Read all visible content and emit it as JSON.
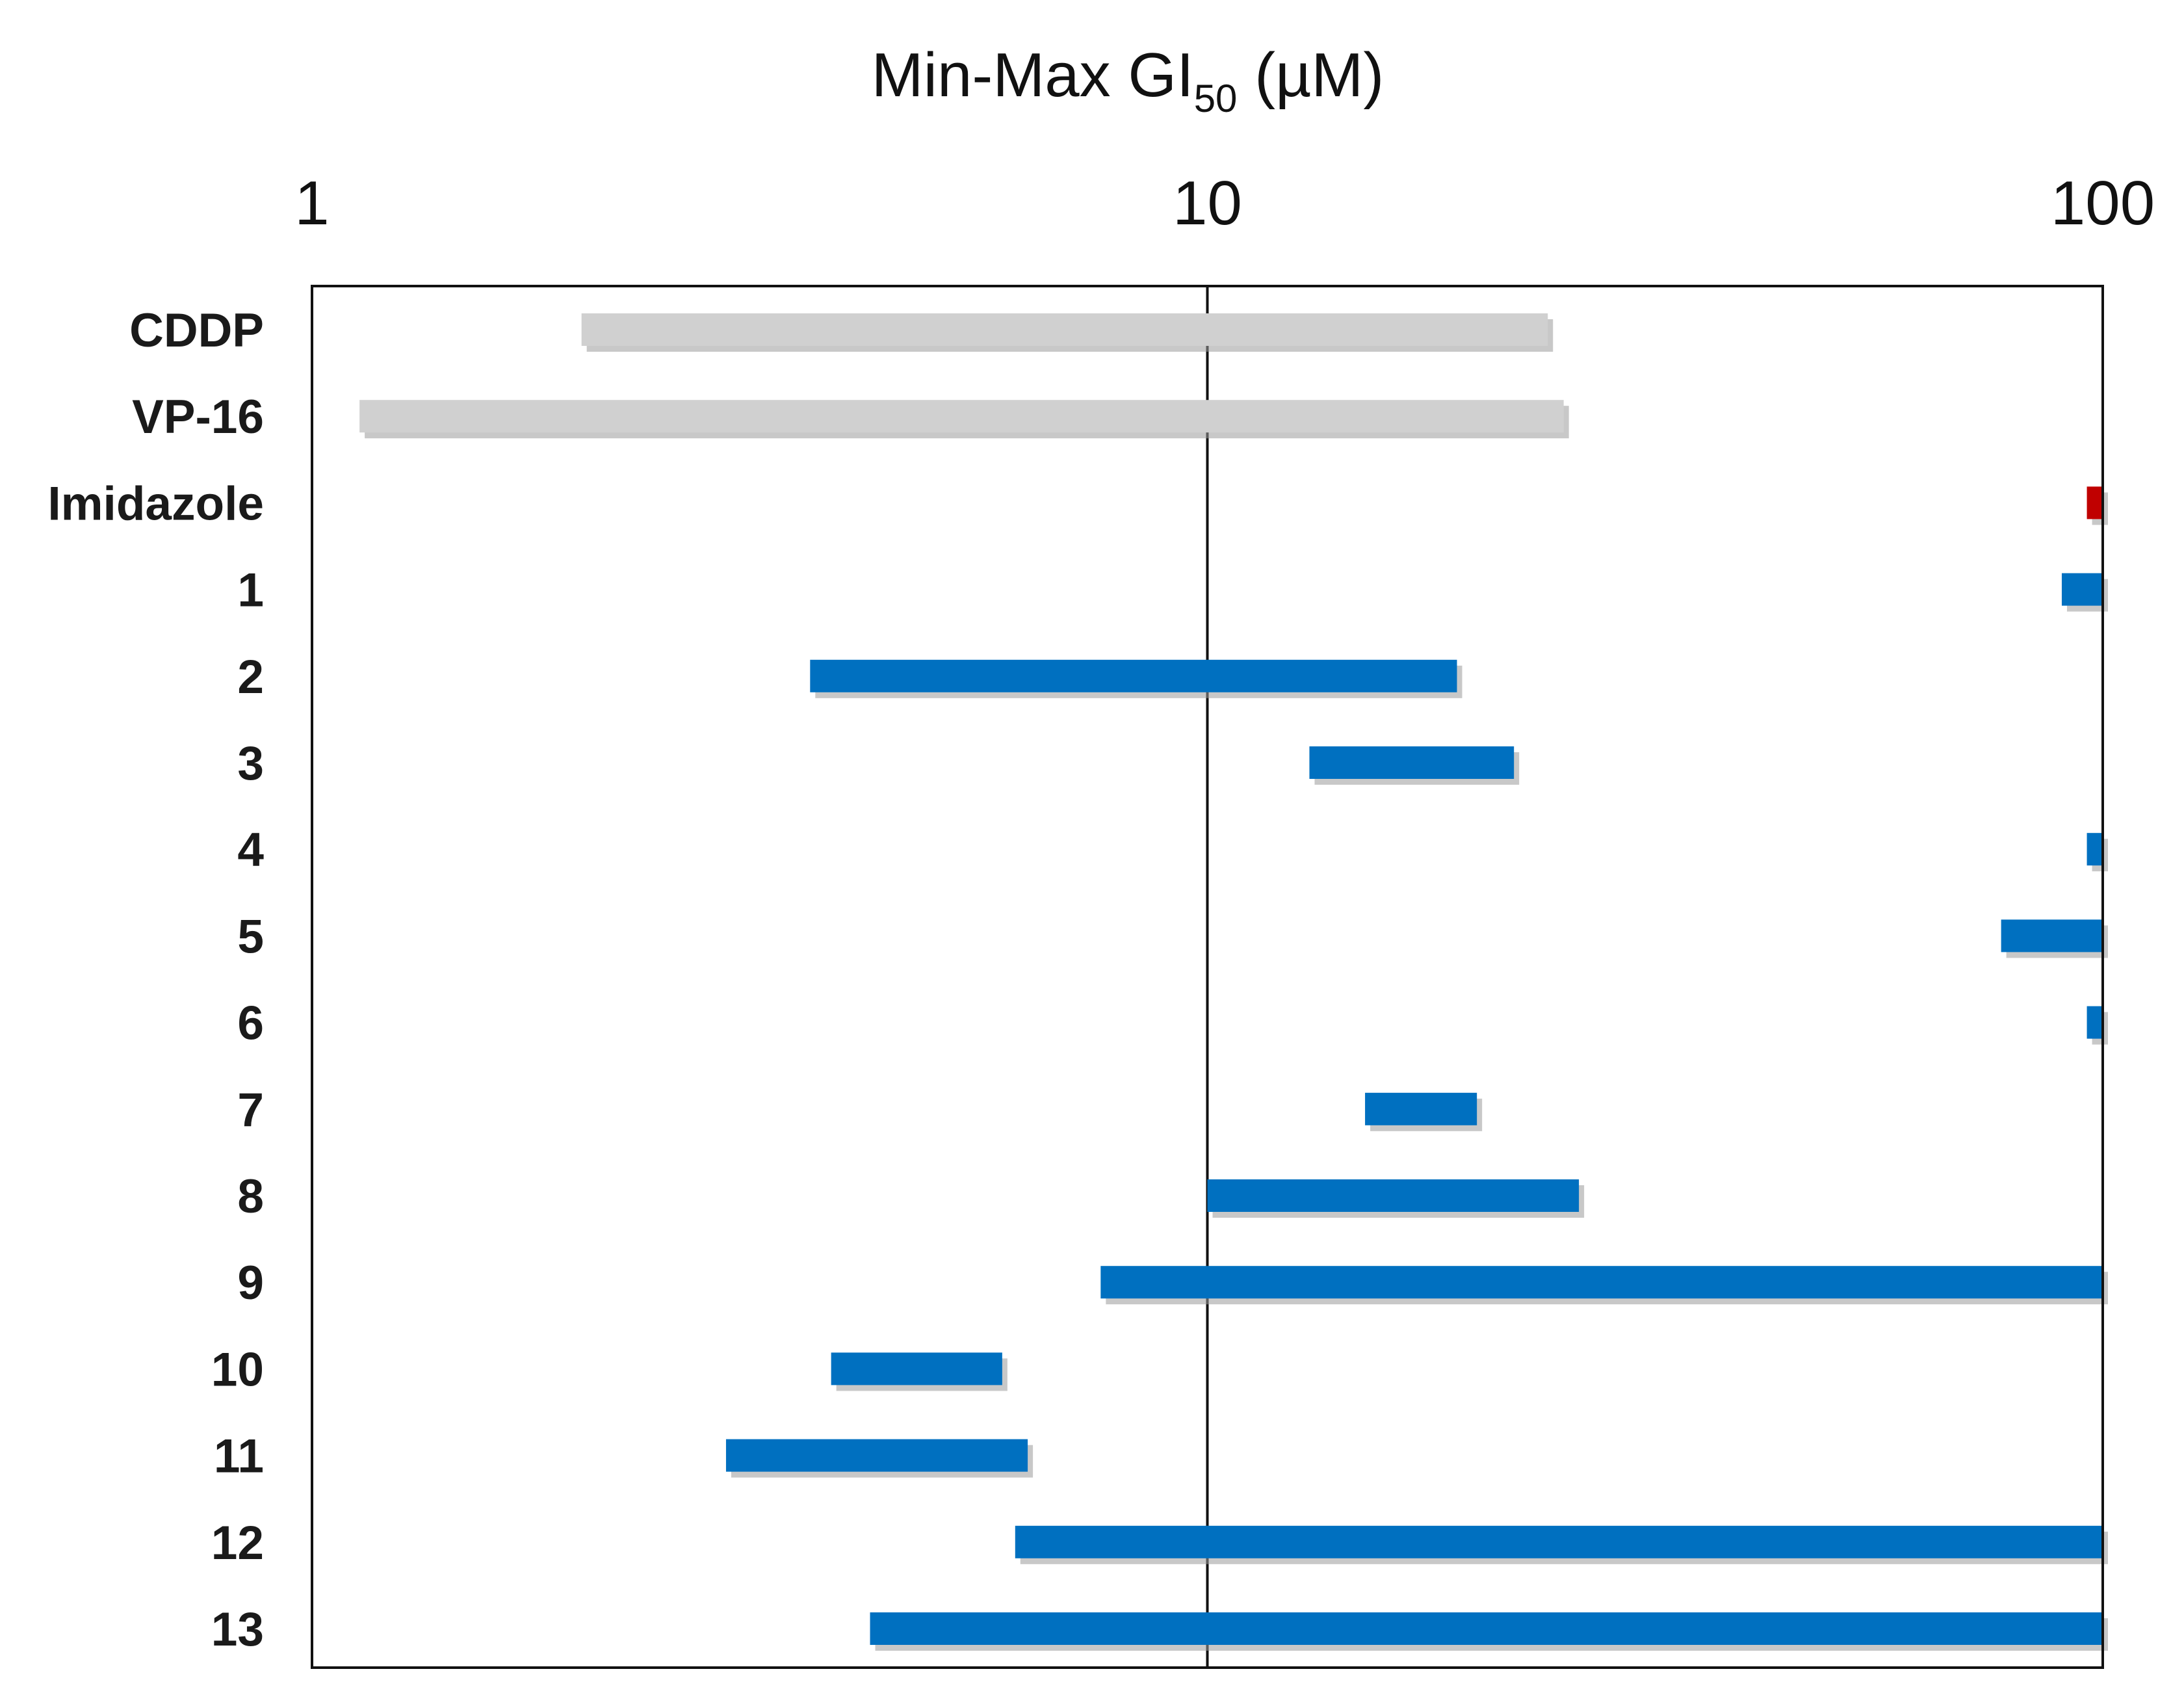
{
  "chart_data": {
    "type": "bar",
    "orientation": "horizontal",
    "bar_style": "floating-range",
    "title": {
      "main": "Min-Max GI",
      "subscript": "50",
      "unit": " (µM)"
    },
    "x_axis": {
      "scale": "log",
      "range": [
        1,
        100
      ],
      "position": "top",
      "ticks": [
        {
          "value": 1,
          "label": "1"
        },
        {
          "value": 10,
          "label": "10"
        },
        {
          "value": 100,
          "label": "100"
        }
      ],
      "gridlines": [
        10
      ]
    },
    "legend": "none",
    "colors": {
      "reference": "#d0d0d0",
      "imidazole": "#c00000",
      "compound": "#0070c0",
      "shadow": "#9a9a9a",
      "frame": "#111111"
    },
    "categories": [
      "CDDP",
      "VP-16",
      "Imidazole",
      "1",
      "2",
      "3",
      "4",
      "5",
      "6",
      "7",
      "8",
      "9",
      "10",
      "11",
      "12",
      "13"
    ],
    "ranges": [
      {
        "label": "CDDP",
        "min": 2.0,
        "max": 24,
        "color_key": "reference"
      },
      {
        "label": "VP-16",
        "min": 1.13,
        "max": 25,
        "color_key": "reference"
      },
      {
        "label": "Imidazole",
        "min": 96,
        "max": 100,
        "color_key": "imidazole"
      },
      {
        "label": "1",
        "min": 90,
        "max": 100,
        "color_key": "compound"
      },
      {
        "label": "2",
        "min": 3.6,
        "max": 19,
        "color_key": "compound"
      },
      {
        "label": "3",
        "min": 13,
        "max": 22,
        "color_key": "compound"
      },
      {
        "label": "4",
        "min": 96,
        "max": 100,
        "color_key": "compound"
      },
      {
        "label": "5",
        "min": 77,
        "max": 100,
        "color_key": "compound"
      },
      {
        "label": "6",
        "min": 96,
        "max": 100,
        "color_key": "compound"
      },
      {
        "label": "7",
        "min": 15,
        "max": 20,
        "color_key": "compound"
      },
      {
        "label": "8",
        "min": 10,
        "max": 26,
        "color_key": "compound"
      },
      {
        "label": "9",
        "min": 7.6,
        "max": 100,
        "color_key": "compound"
      },
      {
        "label": "10",
        "min": 3.8,
        "max": 5.9,
        "color_key": "compound"
      },
      {
        "label": "11",
        "min": 2.9,
        "max": 6.3,
        "color_key": "compound"
      },
      {
        "label": "12",
        "min": 6.1,
        "max": 100,
        "color_key": "compound"
      },
      {
        "label": "13",
        "min": 4.2,
        "max": 100,
        "color_key": "compound"
      }
    ]
  }
}
